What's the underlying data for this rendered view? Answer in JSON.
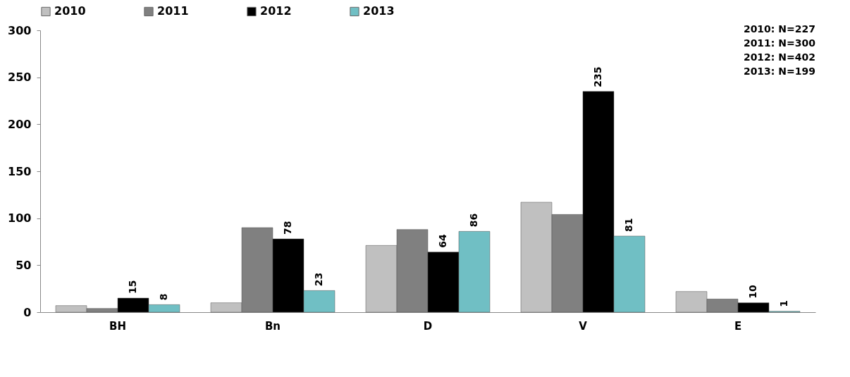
{
  "chart_data": {
    "type": "bar",
    "categories": [
      "BH",
      "Bn",
      "D",
      "V",
      "E"
    ],
    "series": [
      {
        "name": "2010",
        "color": "#c0c0c0",
        "values": [
          7,
          10,
          71,
          117,
          22
        ]
      },
      {
        "name": "2011",
        "color": "#808080",
        "values": [
          4,
          90,
          88,
          104,
          14
        ]
      },
      {
        "name": "2012",
        "color": "#000000",
        "values": [
          15,
          78,
          64,
          235,
          10
        ],
        "value_labels": [
          "15",
          "78",
          "64",
          "235",
          "10"
        ]
      },
      {
        "name": "2013",
        "color": "#70bfc4",
        "values": [
          8,
          23,
          86,
          81,
          1
        ],
        "value_labels": [
          "8",
          "23",
          "86",
          "81",
          "1"
        ]
      }
    ],
    "ylim": [
      0,
      300
    ],
    "yticks": [
      0,
      50,
      100,
      150,
      200,
      250,
      300
    ],
    "grid": false,
    "legend": "top",
    "annotations": [
      "2010: N=227",
      "2011: N=300",
      "2012: N=402",
      "2013: N=199"
    ]
  }
}
